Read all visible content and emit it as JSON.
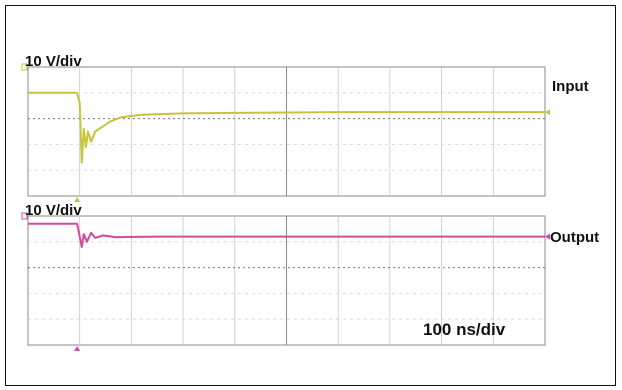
{
  "chart_data": [
    {
      "type": "line",
      "panel": "top",
      "scale_label": "10 V/div",
      "series": [
        {
          "name": "Input",
          "color": "#c6c43a",
          "points": [
            [
              0,
              4.0
            ],
            [
              0.95,
              4.0
            ],
            [
              1.0,
              3.6
            ],
            [
              1.04,
              1.3
            ],
            [
              1.08,
              2.6
            ],
            [
              1.12,
              1.9
            ],
            [
              1.16,
              2.5
            ],
            [
              1.22,
              2.1
            ],
            [
              1.3,
              2.5
            ],
            [
              1.45,
              2.7
            ],
            [
              1.6,
              2.9
            ],
            [
              1.8,
              3.05
            ],
            [
              2.2,
              3.15
            ],
            [
              3,
              3.2
            ],
            [
              4,
              3.22
            ],
            [
              6,
              3.25
            ],
            [
              8,
              3.25
            ],
            [
              10,
              3.25
            ]
          ]
        }
      ],
      "xlim": [
        0,
        10
      ],
      "ylim": [
        0,
        5
      ],
      "grid": true
    },
    {
      "type": "line",
      "panel": "bottom",
      "scale_label": "10 V/div",
      "series": [
        {
          "name": "Output",
          "color": "#d04aa0",
          "points": [
            [
              0,
              4.7
            ],
            [
              0.95,
              4.7
            ],
            [
              1.0,
              4.2
            ],
            [
              1.04,
              3.8
            ],
            [
              1.08,
              4.3
            ],
            [
              1.14,
              4.0
            ],
            [
              1.22,
              4.35
            ],
            [
              1.3,
              4.15
            ],
            [
              1.45,
              4.25
            ],
            [
              1.7,
              4.18
            ],
            [
              2.5,
              4.2
            ],
            [
              5,
              4.2
            ],
            [
              10,
              4.2
            ]
          ]
        }
      ],
      "xlim": [
        0,
        10
      ],
      "ylim": [
        0,
        5
      ],
      "grid": true
    }
  ],
  "timebase": "100 ns/div"
}
